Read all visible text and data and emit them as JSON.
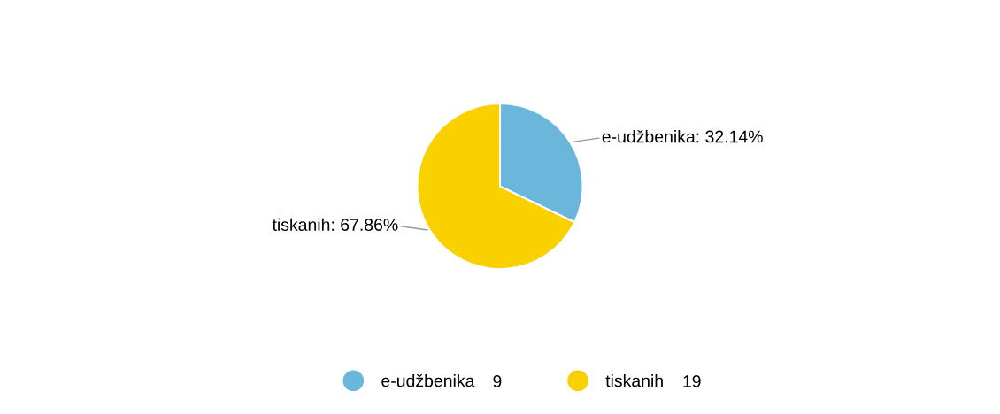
{
  "chart_data": {
    "type": "pie",
    "categories": [
      "e-udžbenika",
      "tiskanih"
    ],
    "values": [
      32.14,
      67.86
    ],
    "colors": [
      "#6bb7dc",
      "#f9d000"
    ],
    "value_labels": [
      ": 32.14%",
      ": 67.86%"
    ],
    "annotations": [
      "9",
      "19"
    ],
    "legend": "bottom"
  }
}
